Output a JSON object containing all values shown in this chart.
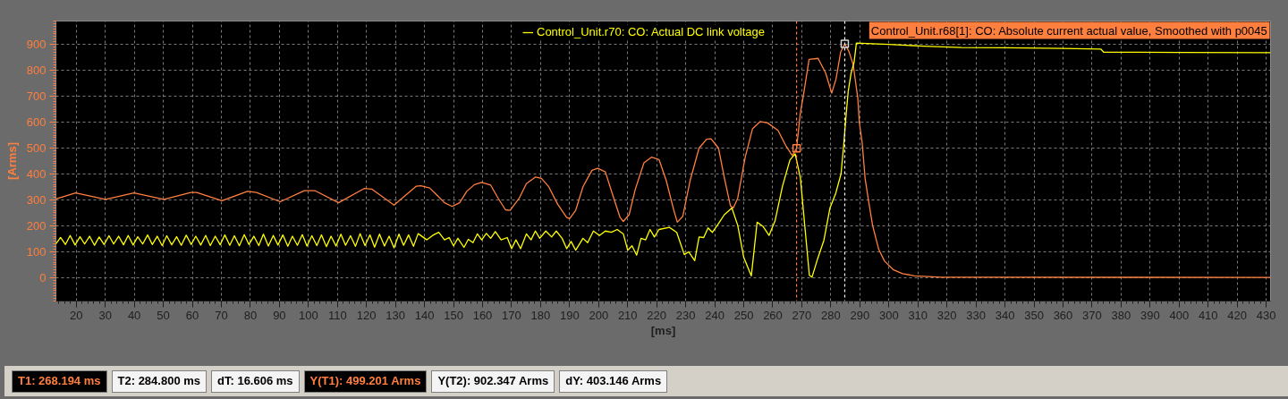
{
  "chart_data": {
    "type": "line",
    "xlabel": "[ms]",
    "ylabel": "[Arms]",
    "xlim": [
      13,
      431.5
    ],
    "ylim": [
      -90,
      990
    ],
    "xticks": [
      20,
      30,
      40,
      50,
      60,
      70,
      80,
      90,
      100,
      110,
      120,
      130,
      140,
      150,
      160,
      170,
      180,
      190,
      200,
      210,
      220,
      230,
      240,
      250,
      260,
      270,
      280,
      290,
      300,
      310,
      320,
      330,
      340,
      350,
      360,
      370,
      380,
      390,
      400,
      410,
      420,
      430
    ],
    "yticks": [
      0,
      100,
      200,
      300,
      400,
      500,
      600,
      700,
      800,
      900
    ],
    "grid": true,
    "legend": "top right",
    "series": [
      {
        "name": "Control_Unit.r68[1]: CO: Absolute current actual value, Smoothed with p0045",
        "color": "#ff7f3f",
        "x": [
          13,
          19.8,
          30.1,
          39.9,
          50.2,
          59.5,
          61.5,
          70.2,
          79,
          82.1,
          90.3,
          98.6,
          102.2,
          110.4,
          119.2,
          121.8,
          129.5,
          137.2,
          138.7,
          141.8,
          144.4,
          146.9,
          149.5,
          152.1,
          154.6,
          157.2,
          159.7,
          162.8,
          165.4,
          167.9,
          169.5,
          172.6,
          175.1,
          178.2,
          180.3,
          182.8,
          185.9,
          189,
          190,
          192.1,
          194.6,
          197.7,
          199.7,
          202.3,
          204.9,
          207.4,
          208.5,
          210.5,
          212.6,
          215.6,
          218.2,
          220.8,
          223.3,
          225.9,
          227.1,
          229,
          231.5,
          234.6,
          237.2,
          238.7,
          241.3,
          243.3,
          245.4,
          246.4,
          247.9,
          250.5,
          253,
          255.6,
          258.2,
          261.8,
          264.4,
          266.7,
          268.194,
          269.5,
          270.5,
          272.5,
          275.6,
          278.2,
          280.3,
          281.8,
          283.4,
          284.8,
          286.2,
          287.7,
          289.3,
          289.8,
          290.8,
          291.8,
          292.9,
          294.4,
          296.5,
          298.5,
          301.6,
          304.7,
          308.8,
          318,
          431.5
        ],
        "values": [
          304,
          327,
          302,
          327,
          302,
          329,
          329,
          297,
          333,
          329,
          293,
          336,
          336,
          289,
          344,
          342,
          280,
          353,
          355,
          346,
          317,
          289,
          275,
          289,
          334,
          359,
          368,
          357,
          306,
          262,
          260,
          306,
          363,
          388,
          383,
          351,
          283,
          232,
          228,
          260,
          351,
          414,
          422,
          408,
          317,
          232,
          217,
          243,
          340,
          443,
          465,
          456,
          374,
          260,
          214,
          237,
          374,
          500,
          534,
          536,
          500,
          386,
          277,
          269,
          306,
          465,
          574,
          602,
          597,
          568,
          511,
          471,
          499,
          636,
          700,
          842,
          846,
          790,
          712,
          767,
          871,
          902,
          873,
          822,
          691,
          600,
          520,
          383,
          303,
          201,
          109,
          64,
          30,
          16,
          7,
          2,
          1
        ]
      },
      {
        "name": "Control_Unit.r70: CO: Actual DC link voltage",
        "color": "#ffff00",
        "x": [
          13,
          14.6,
          16.3,
          17.9,
          19.6,
          21.3,
          22.9,
          24.6,
          26.3,
          27.9,
          29.6,
          31.3,
          32.9,
          34.6,
          36.3,
          37.9,
          39.6,
          41.2,
          42.9,
          44.6,
          46.2,
          47.9,
          49.6,
          51.2,
          52.9,
          54.6,
          56.2,
          57.9,
          59.6,
          61.2,
          62.9,
          64.6,
          66.2,
          67.9,
          69.6,
          71.2,
          72.9,
          74.5,
          76.2,
          77.9,
          79.5,
          81.2,
          82.9,
          84.5,
          86.2,
          87.9,
          89.5,
          91.2,
          92.9,
          94.5,
          96.2,
          97.9,
          99.5,
          101.2,
          102.9,
          104.5,
          106.2,
          107.8,
          109.5,
          111.2,
          112.8,
          114.5,
          116.2,
          117.8,
          119.5,
          121.2,
          122.8,
          124.5,
          126.2,
          127.8,
          129.5,
          131.2,
          132.8,
          134.5,
          136.2,
          137.8,
          140.8,
          142.8,
          144.9,
          146.9,
          148.5,
          150,
          151.5,
          153.6,
          155.1,
          156.7,
          158.2,
          159.7,
          161.3,
          162.8,
          164.4,
          166.4,
          168.5,
          170,
          171.5,
          173.1,
          175.1,
          176.7,
          178.2,
          179.7,
          181.8,
          183.8,
          185.4,
          187.4,
          189,
          190.5,
          192.1,
          194.6,
          196.2,
          198.2,
          200.3,
          202.3,
          204.4,
          206.4,
          208.5,
          210,
          211.5,
          213.1,
          214.6,
          216.2,
          217.7,
          219.2,
          220.8,
          224.4,
          226.9,
          229.5,
          231,
          233.1,
          234.6,
          236.2,
          237.7,
          239.2,
          241.3,
          243.3,
          245.9,
          247.9,
          250,
          252.6,
          254.6,
          256.7,
          258.7,
          260.8,
          263.3,
          265.9,
          267.7,
          269.5,
          271,
          272.6,
          273.5,
          275.5,
          277.6,
          279.7,
          281.7,
          283.5,
          284.5,
          285.2,
          286,
          287,
          288,
          288.8,
          300,
          312,
          325,
          340,
          360,
          373,
          374,
          400,
          431.5
        ],
        "values": [
          130,
          155,
          128,
          163,
          126,
          158,
          130,
          160,
          125,
          157,
          128,
          162,
          130,
          160,
          127,
          163,
          126,
          158,
          130,
          165,
          128,
          160,
          124,
          162,
          127,
          158,
          125,
          164,
          128,
          160,
          126,
          163,
          124,
          160,
          127,
          165,
          125,
          162,
          123,
          166,
          128,
          160,
          124,
          168,
          122,
          163,
          126,
          165,
          121,
          160,
          125,
          166,
          122,
          162,
          124,
          165,
          120,
          160,
          122,
          168,
          125,
          162,
          121,
          170,
          124,
          165,
          118,
          168,
          122,
          160,
          115,
          168,
          125,
          165,
          121,
          170,
          146,
          163,
          175,
          146,
          155,
          123,
          152,
          117,
          148,
          135,
          169,
          146,
          171,
          152,
          178,
          146,
          155,
          112,
          146,
          112,
          169,
          146,
          180,
          152,
          180,
          157,
          180,
          152,
          112,
          140,
          106,
          152,
          135,
          180,
          163,
          180,
          175,
          186,
          169,
          106,
          123,
          87,
          152,
          146,
          186,
          157,
          186,
          194,
          175,
          89,
          100,
          66,
          157,
          155,
          192,
          175,
          209,
          243,
          269,
          203,
          78,
          7,
          214,
          197,
          163,
          220,
          351,
          454,
          478,
          386,
          203,
          9,
          2,
          75,
          144,
          269,
          326,
          400,
          520,
          620,
          720,
          790,
          830,
          905,
          900,
          893,
          888,
          887,
          884,
          882,
          870,
          869,
          868
        ]
      },
      {
        "type": "scatter",
        "marker": "square",
        "color": "#ff7f3f",
        "x": [
          268.194
        ],
        "values": [
          499.201
        ]
      },
      {
        "type": "scatter",
        "marker": "square",
        "color": "#d8d8d8",
        "x": [
          284.8
        ],
        "values": [
          902.347
        ]
      }
    ],
    "ref_lines": [
      {
        "axis": "x",
        "value": 268.194,
        "color": "#ff7f3f",
        "line_style": "dashed"
      },
      {
        "axis": "x",
        "value": 284.8,
        "color": "#ffffff",
        "line_style": "dashed"
      }
    ],
    "annotations": [
      "T1: 268.194 ms",
      "T2: 284.800 ms",
      "dT: 16.606 ms",
      "Y(T1): 499.201 Arms",
      "Y(T2): 902.347 Arms",
      "dY: 403.146 Arms"
    ]
  }
}
